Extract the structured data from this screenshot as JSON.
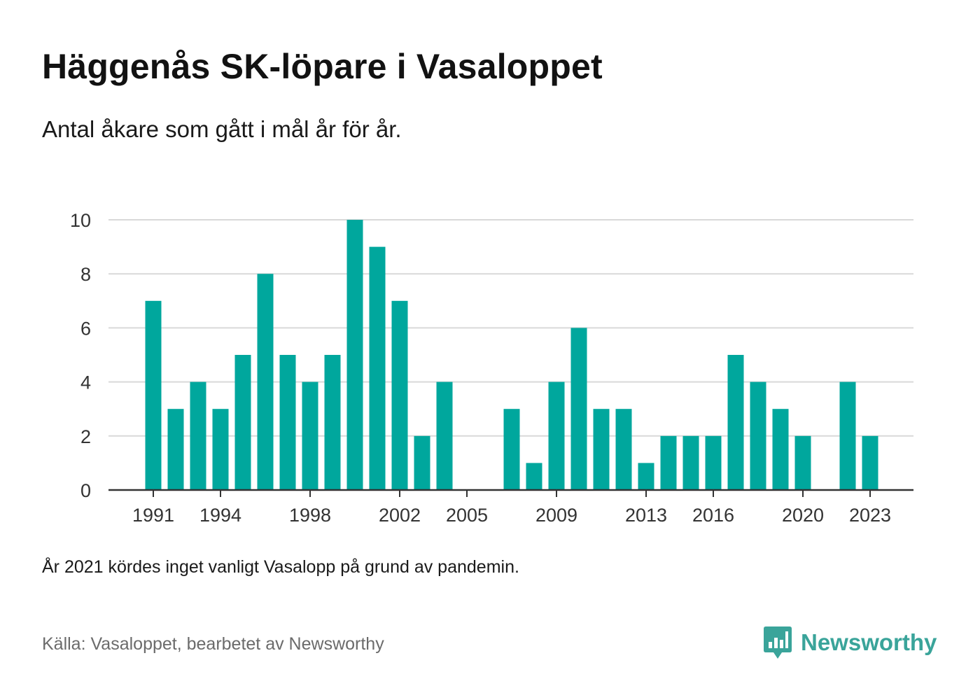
{
  "header": {
    "title": "Häggenås SK-löpare i Vasaloppet",
    "subtitle": "Antal åkare som gått i mål år för år."
  },
  "footer": {
    "note": "År 2021 kördes inget vanligt Vasalopp på grund av pandemin.",
    "source": "Källa: Vasaloppet, bearbetet av Newsworthy",
    "brand": "Newsworthy",
    "brand_icon": "newsworthy-logo-icon"
  },
  "colors": {
    "bar": "#00a79d",
    "grid": "#d9d9d9",
    "axis": "#333333",
    "brand": "#3aa49a"
  },
  "chart_data": {
    "type": "bar",
    "categories": [
      "1991",
      "1992",
      "1993",
      "1994",
      "1995",
      "1996",
      "1997",
      "1998",
      "1999",
      "2000",
      "2001",
      "2002",
      "2003",
      "2004",
      "2005",
      "2006",
      "2007",
      "2008",
      "2009",
      "2010",
      "2011",
      "2012",
      "2013",
      "2014",
      "2015",
      "2016",
      "2017",
      "2018",
      "2019",
      "2020",
      "2021",
      "2022",
      "2023"
    ],
    "values": [
      7,
      3,
      4,
      3,
      5,
      8,
      5,
      4,
      5,
      10,
      9,
      7,
      2,
      4,
      0,
      0,
      3,
      1,
      4,
      6,
      3,
      3,
      1,
      2,
      2,
      2,
      5,
      4,
      3,
      2,
      0,
      4,
      2
    ],
    "x_tick_labels": [
      "1991",
      "1994",
      "1998",
      "2002",
      "2005",
      "2009",
      "2013",
      "2016",
      "2020",
      "2023"
    ],
    "y_ticks": [
      0,
      2,
      4,
      6,
      8,
      10
    ],
    "ylim": [
      0,
      10
    ],
    "grid": true,
    "legend": "none"
  }
}
